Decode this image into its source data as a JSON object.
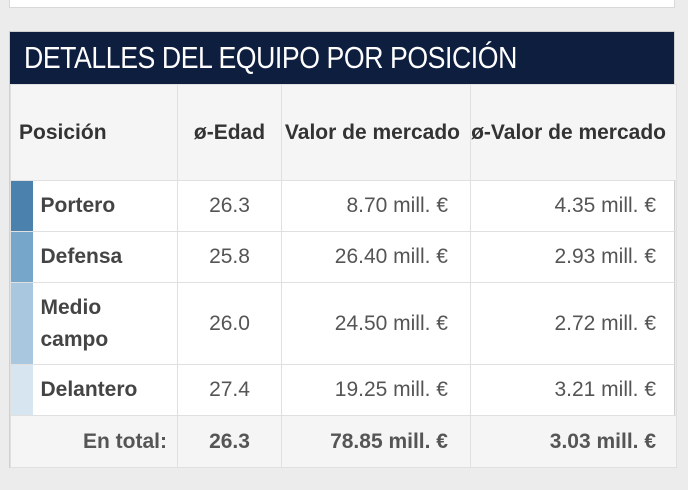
{
  "card": {
    "title": "DETALLES DEL EQUIPO POR POSICIÓN"
  },
  "table": {
    "headers": {
      "position": "Posición",
      "avg_age": "ø-Edad",
      "market_value": "Valor de mercado",
      "avg_market_value": "ø-Valor de mercado"
    },
    "rows": [
      {
        "position": "Portero",
        "avg_age": "26.3",
        "market_value": "8.70 mill. €",
        "avg_market_value": "4.35 mill. €",
        "color": "#4a81ad"
      },
      {
        "position": "Defensa",
        "avg_age": "25.8",
        "market_value": "26.40 mill. €",
        "avg_market_value": "2.93 mill. €",
        "color": "#77a6cb"
      },
      {
        "position": "Medio campo",
        "avg_age": "26.0",
        "market_value": "24.50 mill. €",
        "avg_market_value": "2.72 mill. €",
        "color": "#a9c8df"
      },
      {
        "position": "Delantero",
        "avg_age": "27.4",
        "market_value": "19.25 mill. €",
        "avg_market_value": "3.21 mill. €",
        "color": "#d7e5f0"
      }
    ],
    "total": {
      "label": "En total:",
      "avg_age": "26.3",
      "market_value": "78.85 mill. €",
      "avg_market_value": "3.03 mill. €"
    }
  }
}
